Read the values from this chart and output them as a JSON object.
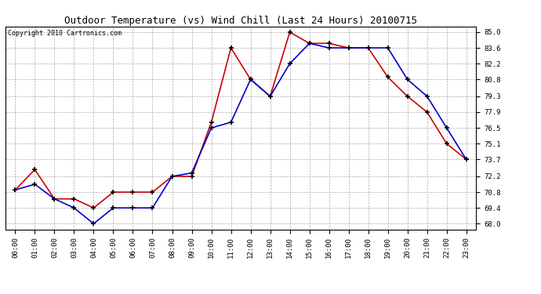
{
  "title": "Outdoor Temperature (vs) Wind Chill (Last 24 Hours) 20100715",
  "copyright_text": "Copyright 2010 Cartronics.com",
  "hours": [
    "00:00",
    "01:00",
    "02:00",
    "03:00",
    "04:00",
    "05:00",
    "06:00",
    "07:00",
    "08:00",
    "09:00",
    "10:00",
    "11:00",
    "12:00",
    "13:00",
    "14:00",
    "15:00",
    "16:00",
    "17:00",
    "18:00",
    "19:00",
    "20:00",
    "21:00",
    "22:00",
    "23:00"
  ],
  "outdoor_temp": [
    71.0,
    72.8,
    70.2,
    70.2,
    69.4,
    70.8,
    70.8,
    70.8,
    72.2,
    72.2,
    77.0,
    83.6,
    80.8,
    79.3,
    85.0,
    84.0,
    84.0,
    83.6,
    83.6,
    81.0,
    79.3,
    77.9,
    75.1,
    73.7
  ],
  "wind_chill": [
    71.0,
    71.5,
    70.2,
    69.4,
    68.0,
    69.4,
    69.4,
    69.4,
    72.2,
    72.5,
    76.5,
    77.0,
    80.8,
    79.3,
    82.2,
    84.0,
    83.6,
    83.6,
    83.6,
    83.6,
    80.8,
    79.3,
    76.5,
    73.7
  ],
  "temp_color": "#cc0000",
  "wind_color": "#0000cc",
  "bg_color": "#ffffff",
  "grid_color": "#aaaaaa",
  "yticks": [
    68.0,
    69.4,
    70.8,
    72.2,
    73.7,
    75.1,
    76.5,
    77.9,
    79.3,
    80.8,
    82.2,
    83.6,
    85.0
  ],
  "ylim": [
    67.5,
    85.5
  ],
  "title_fontsize": 9,
  "copyright_fontsize": 6,
  "tick_fontsize": 6.5,
  "linewidth": 1.2,
  "markersize": 4
}
